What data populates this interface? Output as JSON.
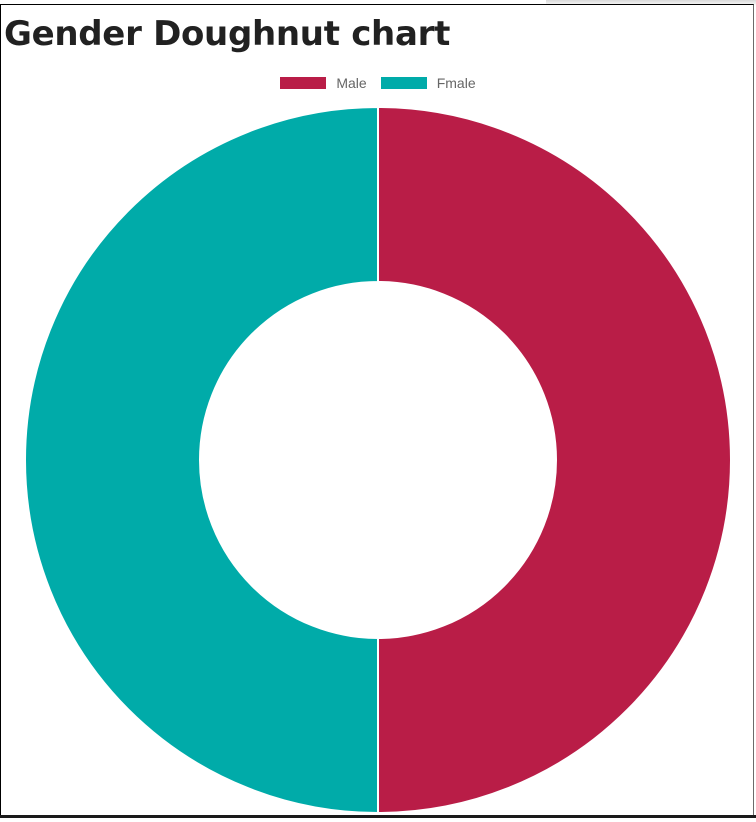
{
  "page": {
    "title": "Gender Doughnut chart"
  },
  "colors": {
    "male": "#b91d47",
    "female": "#00aba9",
    "border": "#ffffff"
  },
  "chart_data": {
    "type": "doughnut",
    "title": "Gender Doughnut chart",
    "legend_position": "top",
    "labels": [
      "Male",
      "Fmale"
    ],
    "values": [
      50,
      50
    ],
    "colors": [
      "#b91d47",
      "#00aba9"
    ]
  }
}
